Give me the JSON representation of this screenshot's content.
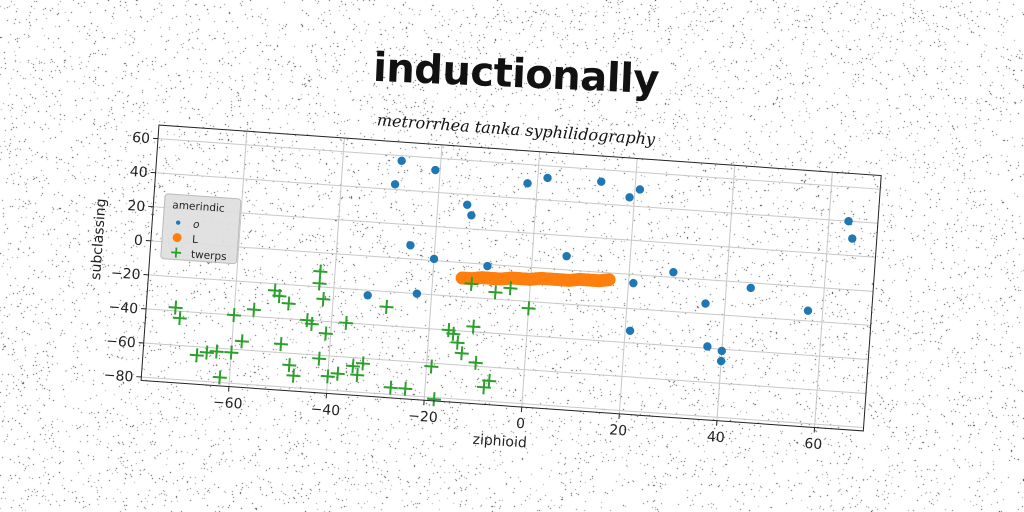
{
  "colors": {
    "series_o": "#1f77b4",
    "series_l": "#ff7f0e",
    "series_twerps": "#2ca02c",
    "grid": "#c8c8c8",
    "axes": "#222222",
    "legend_bg": "#dedede"
  },
  "chart_data": {
    "type": "scatter",
    "title": "inductionally",
    "subtitle": "metrorrhea tanka syphilidography",
    "xlabel": "ziphioid",
    "ylabel": "subclassing",
    "xlim": [
      -78,
      70
    ],
    "ylim": [
      -82,
      68
    ],
    "xticks": [
      -60,
      -40,
      -20,
      0,
      20,
      40,
      60
    ],
    "yticks": [
      60,
      40,
      20,
      0,
      -20,
      -40,
      -60,
      -80
    ],
    "xtick_labels": [
      "−60",
      "−40",
      "−20",
      "0",
      "20",
      "40",
      "60"
    ],
    "ytick_labels": [
      "60",
      "40",
      "20",
      "0",
      "−20",
      "−40",
      "−60",
      "−80"
    ],
    "grid": true,
    "legend": {
      "title": "amerindic",
      "position": "center-left",
      "entries": [
        {
          "label": "o",
          "marker": "circle"
        },
        {
          "label": "L",
          "marker": "circle"
        },
        {
          "label": "twerps",
          "marker": "plus"
        }
      ]
    },
    "series": [
      {
        "name": "o",
        "marker": "circle",
        "points": [
          [
            -28,
            57
          ],
          [
            -21,
            53
          ],
          [
            -29,
            43
          ],
          [
            -14,
            34
          ],
          [
            -13,
            28
          ],
          [
            -25,
            8
          ],
          [
            -20,
            1
          ],
          [
            -9,
            -1
          ],
          [
            -33,
            -23
          ],
          [
            -23,
            -20
          ],
          [
            -2,
            49
          ],
          [
            2,
            53
          ],
          [
            13,
            53
          ],
          [
            19,
            45
          ],
          [
            21,
            50
          ],
          [
            7,
            8
          ],
          [
            21,
            -5
          ],
          [
            29,
            3
          ],
          [
            21,
            -33
          ],
          [
            36,
            -14
          ],
          [
            37,
            -39
          ],
          [
            40,
            -41
          ],
          [
            40,
            -47
          ],
          [
            45,
            -3
          ],
          [
            57,
            -14
          ],
          [
            64,
            40
          ],
          [
            65,
            30
          ]
        ]
      },
      {
        "name": "L",
        "marker": "circle",
        "points": [
          [
            -14,
            -9
          ],
          [
            -12,
            -9
          ],
          [
            -10,
            -8
          ],
          [
            -8,
            -8
          ],
          [
            -6,
            -8
          ],
          [
            -4,
            -7
          ],
          [
            -2,
            -7
          ],
          [
            0,
            -7
          ],
          [
            2,
            -6
          ],
          [
            4,
            -6
          ],
          [
            6,
            -6
          ],
          [
            8,
            -6
          ],
          [
            10,
            -5
          ],
          [
            12,
            -5
          ],
          [
            14,
            -5
          ],
          [
            16,
            -4
          ]
        ]
      },
      {
        "name": "twerps",
        "marker": "plus",
        "points": [
          [
            -72,
            -38
          ],
          [
            -71,
            -44
          ],
          [
            -67,
            -65
          ],
          [
            -65,
            -63
          ],
          [
            -63,
            -62
          ],
          [
            -62,
            -77
          ],
          [
            -60,
            -40
          ],
          [
            -60,
            -62
          ],
          [
            -58,
            -55
          ],
          [
            -56,
            -36
          ],
          [
            -52,
            -24
          ],
          [
            -51,
            -27
          ],
          [
            -50,
            -55
          ],
          [
            -49,
            -31
          ],
          [
            -48,
            -67
          ],
          [
            -47,
            -73
          ],
          [
            -45,
            -40
          ],
          [
            -44,
            -42
          ],
          [
            -43,
            -11
          ],
          [
            -43,
            -18
          ],
          [
            -42,
            -27
          ],
          [
            -42,
            -62
          ],
          [
            -41,
            -47
          ],
          [
            -40,
            -72
          ],
          [
            -38,
            -70
          ],
          [
            -37,
            -40
          ],
          [
            -35,
            -65
          ],
          [
            -34,
            -70
          ],
          [
            -33,
            -63
          ],
          [
            -29,
            -29
          ],
          [
            -27,
            -76
          ],
          [
            -24,
            -76
          ],
          [
            -19,
            -62
          ],
          [
            -18,
            -81
          ],
          [
            -16,
            -40
          ],
          [
            -15,
            -42
          ],
          [
            -14,
            -47
          ],
          [
            -13,
            -53
          ],
          [
            -12,
            -12
          ],
          [
            -11,
            -37
          ],
          [
            -10,
            -58
          ],
          [
            -8,
            -72
          ],
          [
            -7,
            -68
          ],
          [
            -7,
            -16
          ],
          [
            -4,
            -13
          ],
          [
            0,
            -24
          ]
        ]
      }
    ]
  }
}
